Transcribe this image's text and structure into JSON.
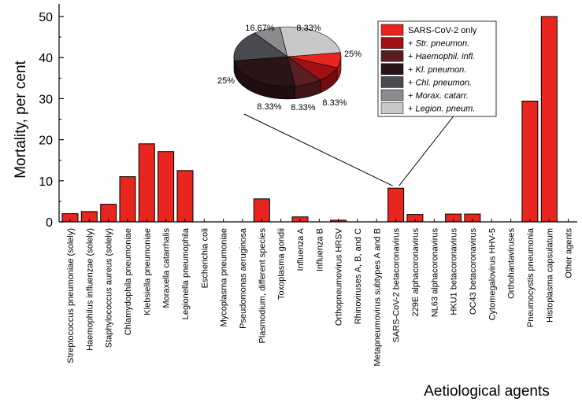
{
  "chart_data": [
    {
      "type": "bar",
      "ylabel": "Mortality, per cent",
      "xlabel": "Aetiological agents",
      "ylim": [
        0,
        50
      ],
      "yticks": [
        0,
        10,
        20,
        30,
        40,
        50
      ],
      "grid": false,
      "bar_color": "#e8251f",
      "categories": [
        "Streptococcus pneumoniae (solely)",
        "Haemophilus influenzae (solely)",
        "Staphylococcus aureus (solely)",
        "Chlamydophila pneumoniae",
        "Klebsiella pneumoniae",
        "Moraxella catarrhalis",
        "Legionella pneumophila",
        "Escherichia coli",
        "Mycoplasma pneumoniae",
        "Pseudomonas aeruginosa",
        "Plasmodium, different species",
        "Toxoplasma gondii",
        "Influenza A",
        "Influenza B",
        "Orthopneumovirus HRSV",
        "Rhinoviruses A, B, and C",
        "Metapneumovirus subtypes A and B",
        "SARS-CoV-2 betacoronavirus",
        "229E alphacoronavirus",
        "NL63 alphacoronavirus",
        "HKU1 betacoronavirus",
        "OC43 betacoronavirus",
        "Cytomegalovirus HHV-5",
        "Orthohantaviruses",
        "Pneumocystis pneumonia",
        "Histoplasma capsulatum",
        "Other agents"
      ],
      "values": [
        2.0,
        2.5,
        4.3,
        11.0,
        19.0,
        17.1,
        12.5,
        0,
        0,
        0,
        5.6,
        0,
        1.2,
        0,
        0.4,
        0,
        0,
        8.2,
        1.8,
        0,
        1.9,
        1.9,
        0,
        0,
        29.4,
        50.0,
        0
      ]
    },
    {
      "type": "pie",
      "labels": [
        "SARS-CoV-2 only",
        "+ Str. pneumon.",
        "+ Haemophil. infl.",
        "+ Kl. pneumon.",
        "+ Chl. pneumon.",
        "+ Morax. catarr.",
        "+ Legion. pneum."
      ],
      "label_prefix": [
        "",
        "+ ",
        "+ ",
        "+ ",
        "+ ",
        "+ ",
        "+ "
      ],
      "label_italic": [
        "SARS-CoV-2 only",
        "Str. pneumon.",
        "Haemophil. infl.",
        "Kl. pneumon.",
        "Chl. pneumon.",
        "Morax. catarr.",
        "Legion. pneum."
      ],
      "label_italic_flag": [
        false,
        true,
        true,
        true,
        true,
        true,
        true
      ],
      "values": [
        8.33,
        8.33,
        8.33,
        25,
        16.67,
        8.33,
        25
      ],
      "value_labels": [
        "8.33%",
        "8.33%",
        "8.33%",
        "25%",
        "16.67%",
        "8.33%",
        "25%"
      ],
      "colors": [
        "#e8251f",
        "#a01014",
        "#5a1d22",
        "#2a1418",
        "#4a4b4f",
        "#8c8c8e",
        "#c8c8ca"
      ],
      "legend_position": "right"
    }
  ]
}
